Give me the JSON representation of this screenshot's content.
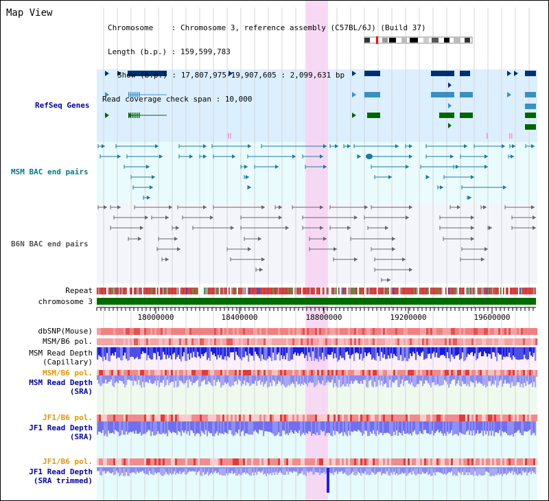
{
  "title": "Map View",
  "header": {
    "chromosome_label": "Chromosome    :",
    "chromosome_value": "Chromosome 3, reference assembly (C57BL/6J) (Build 37)",
    "length_label": "Length (b.p.) :",
    "length_value": "159,599,783",
    "show_label": "Show (b.p.) :",
    "show_value": "17,807,975-19,907,605 : 2,099,631 bp",
    "coverage_label": "Read coverage check span :",
    "coverage_value": "10,000"
  },
  "tracks": {
    "refseq": {
      "label": "RefSeq Genes",
      "color": "#0000aa"
    },
    "msm_bac": {
      "label": "MSM BAC end pairs",
      "color": "#007a8a"
    },
    "b6n_bac": {
      "label": "B6N BAC end pairs",
      "color": "#555555"
    },
    "repeat": {
      "label": "Repeat"
    },
    "chromosome": {
      "label": "chromosome 3"
    },
    "dbsnp": {
      "label": "dbSNP(Mouse)"
    },
    "msm_b6_pol_1": {
      "label": "MSM/B6 pol."
    },
    "msm_depth_cap": {
      "label_1": "MSM Read Depth",
      "label_2": "(Capillary)"
    },
    "msm_b6_pol_2": {
      "label": "MSM/B6 pol.",
      "color": "#e69500"
    },
    "msm_depth_sra": {
      "label_1": "MSM Read Depth",
      "label_2": "(SRA)",
      "color": "#0000aa"
    },
    "jf1_b6_pol_1": {
      "label": "JF1/B6 pol.",
      "color": "#e69500"
    },
    "jf1_depth_sra": {
      "label_1": "JF1 Read Depth",
      "label_2": "(SRA)",
      "color": "#0000aa"
    },
    "jf1_b6_pol_2": {
      "label": "JF1/B6 pol.",
      "color": "#e69500"
    },
    "jf1_depth_trim": {
      "label_1": "JF1 Read Depth",
      "label_2": "(SRA trimmed)",
      "color": "#0000aa"
    }
  },
  "axis": {
    "ticks": [
      "18000000",
      "18400000",
      "18800000",
      "19200000",
      "19600000"
    ]
  },
  "colors": {
    "highlight": "#f7d2f2",
    "refseq_bg": "#dcefff",
    "bac_bg": "#e9fbfc",
    "dark_blue": "#003070",
    "mid_blue": "#3a8fc0",
    "green": "#006600",
    "repeat_red": "#cc1111",
    "chrom_green": "#006b00",
    "depth_blue": "#2020e0",
    "depth_light": "#7777ee"
  }
}
